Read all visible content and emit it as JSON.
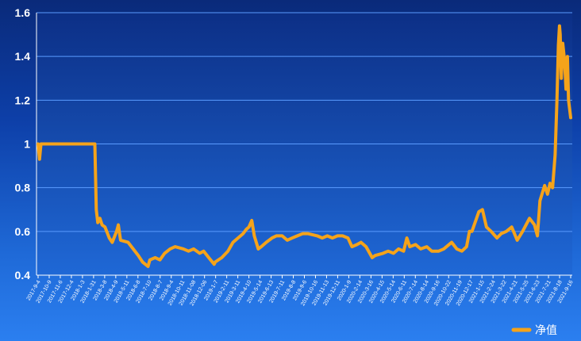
{
  "chart_data": {
    "type": "line",
    "title": "",
    "xlabel": "",
    "ylabel": "",
    "ylim": [
      0.4,
      1.6
    ],
    "y_ticks": [
      "0.4",
      "0.6",
      "0.8",
      "1",
      "1.2",
      "1.4",
      "1.6"
    ],
    "grid": true,
    "legend_position": "bottom-right",
    "colors": {
      "line": "#f5a31a",
      "grid": "#5a9bff",
      "axis": "#ffffff"
    },
    "x_tick_labels": [
      "2017-9-4",
      "2017-10-9",
      "2017-11-6",
      "2017-12-4",
      "2018-1-3",
      "2018-1-31",
      "2018-3-8",
      "2018-4-9",
      "2018-5-11",
      "2018-6-8",
      "2018-7-10",
      "2018-8-7",
      "2018-9-4",
      "2018-10-11",
      "2018-11-08",
      "2018-12-06",
      "2019-1-7",
      "2019-2-11",
      "2019-3-11",
      "2019-4-10",
      "2019-5-14",
      "2019-6-13",
      "2019-7-11",
      "2019-8-8",
      "2019-9-6",
      "2019-10-16",
      "2019-11-13",
      "2019-12-11",
      "2020-1-9",
      "2020-2-14",
      "2020-3-16",
      "2020-4-15",
      "2020-5-14",
      "2020-6-11",
      "2020-7-14",
      "2020-8-14",
      "2020-9-16",
      "2020-10-22",
      "2020-11-19",
      "2020-12-17",
      "2021-1-15",
      "2021-2-24",
      "2021-3-22",
      "2021-4-21",
      "2021-5-25",
      "2021-6-23",
      "2021-7-21",
      "2021-8-18",
      "2021-9-16"
    ],
    "series": [
      {
        "name": "净值",
        "points": [
          [
            "2017-09-04",
            1.0
          ],
          [
            "2017-09-08",
            0.93
          ],
          [
            "2017-09-12",
            1.0
          ],
          [
            "2017-10-09",
            1.0
          ],
          [
            "2017-11-06",
            1.0
          ],
          [
            "2017-12-04",
            1.0
          ],
          [
            "2018-01-03",
            1.0
          ],
          [
            "2018-01-31",
            1.0
          ],
          [
            "2018-02-08",
            1.0
          ],
          [
            "2018-02-12",
            0.7
          ],
          [
            "2018-02-16",
            0.64
          ],
          [
            "2018-02-22",
            0.66
          ],
          [
            "2018-02-28",
            0.63
          ],
          [
            "2018-03-08",
            0.62
          ],
          [
            "2018-03-20",
            0.57
          ],
          [
            "2018-03-28",
            0.55
          ],
          [
            "2018-04-09",
            0.6
          ],
          [
            "2018-04-14",
            0.63
          ],
          [
            "2018-04-20",
            0.56
          ],
          [
            "2018-05-11",
            0.55
          ],
          [
            "2018-05-25",
            0.52
          ],
          [
            "2018-06-08",
            0.49
          ],
          [
            "2018-06-20",
            0.46
          ],
          [
            "2018-07-05",
            0.44
          ],
          [
            "2018-07-10",
            0.47
          ],
          [
            "2018-07-25",
            0.48
          ],
          [
            "2018-08-07",
            0.47
          ],
          [
            "2018-08-20",
            0.5
          ],
          [
            "2018-09-04",
            0.52
          ],
          [
            "2018-09-18",
            0.53
          ],
          [
            "2018-10-11",
            0.52
          ],
          [
            "2018-10-25",
            0.51
          ],
          [
            "2018-11-08",
            0.52
          ],
          [
            "2018-11-25",
            0.5
          ],
          [
            "2018-12-06",
            0.51
          ],
          [
            "2018-12-20",
            0.48
          ],
          [
            "2019-01-04",
            0.45
          ],
          [
            "2019-01-07",
            0.46
          ],
          [
            "2019-01-25",
            0.48
          ],
          [
            "2019-02-11",
            0.51
          ],
          [
            "2019-02-25",
            0.55
          ],
          [
            "2019-03-11",
            0.57
          ],
          [
            "2019-03-25",
            0.59
          ],
          [
            "2019-04-03",
            0.61
          ],
          [
            "2019-04-10",
            0.62
          ],
          [
            "2019-04-18",
            0.65
          ],
          [
            "2019-04-25",
            0.58
          ],
          [
            "2019-05-06",
            0.52
          ],
          [
            "2019-05-14",
            0.53
          ],
          [
            "2019-05-28",
            0.55
          ],
          [
            "2019-06-13",
            0.57
          ],
          [
            "2019-06-25",
            0.58
          ],
          [
            "2019-07-11",
            0.58
          ],
          [
            "2019-07-25",
            0.56
          ],
          [
            "2019-08-08",
            0.57
          ],
          [
            "2019-08-22",
            0.58
          ],
          [
            "2019-09-06",
            0.59
          ],
          [
            "2019-09-20",
            0.59
          ],
          [
            "2019-10-16",
            0.58
          ],
          [
            "2019-10-30",
            0.57
          ],
          [
            "2019-11-13",
            0.58
          ],
          [
            "2019-11-27",
            0.57
          ],
          [
            "2019-12-11",
            0.58
          ],
          [
            "2019-12-25",
            0.58
          ],
          [
            "2020-01-09",
            0.57
          ],
          [
            "2020-01-20",
            0.53
          ],
          [
            "2020-02-03",
            0.54
          ],
          [
            "2020-02-14",
            0.55
          ],
          [
            "2020-02-28",
            0.53
          ],
          [
            "2020-03-16",
            0.48
          ],
          [
            "2020-03-24",
            0.49
          ],
          [
            "2020-04-15",
            0.5
          ],
          [
            "2020-04-29",
            0.51
          ],
          [
            "2020-05-14",
            0.5
          ],
          [
            "2020-05-28",
            0.52
          ],
          [
            "2020-06-11",
            0.51
          ],
          [
            "2020-06-20",
            0.57
          ],
          [
            "2020-06-28",
            0.53
          ],
          [
            "2020-07-14",
            0.54
          ],
          [
            "2020-07-28",
            0.52
          ],
          [
            "2020-08-14",
            0.53
          ],
          [
            "2020-08-28",
            0.51
          ],
          [
            "2020-09-16",
            0.51
          ],
          [
            "2020-09-30",
            0.52
          ],
          [
            "2020-10-22",
            0.55
          ],
          [
            "2020-11-05",
            0.52
          ],
          [
            "2020-11-19",
            0.51
          ],
          [
            "2020-12-02",
            0.53
          ],
          [
            "2020-12-10",
            0.6
          ],
          [
            "2020-12-17",
            0.6
          ],
          [
            "2021-01-05",
            0.69
          ],
          [
            "2021-01-15",
            0.7
          ],
          [
            "2021-01-26",
            0.62
          ],
          [
            "2021-02-08",
            0.6
          ],
          [
            "2021-02-24",
            0.57
          ],
          [
            "2021-03-08",
            0.59
          ],
          [
            "2021-03-22",
            0.6
          ],
          [
            "2021-04-06",
            0.62
          ],
          [
            "2021-04-21",
            0.56
          ],
          [
            "2021-05-06",
            0.6
          ],
          [
            "2021-05-25",
            0.66
          ],
          [
            "2021-06-08",
            0.63
          ],
          [
            "2021-06-16",
            0.58
          ],
          [
            "2021-06-23",
            0.74
          ],
          [
            "2021-07-06",
            0.81
          ],
          [
            "2021-07-14",
            0.77
          ],
          [
            "2021-07-21",
            0.82
          ],
          [
            "2021-07-28",
            0.8
          ],
          [
            "2021-08-04",
            0.95
          ],
          [
            "2021-08-09",
            1.2
          ],
          [
            "2021-08-13",
            1.45
          ],
          [
            "2021-08-16",
            1.54
          ],
          [
            "2021-08-18",
            1.5
          ],
          [
            "2021-08-21",
            1.3
          ],
          [
            "2021-08-25",
            1.46
          ],
          [
            "2021-08-30",
            1.38
          ],
          [
            "2021-09-03",
            1.25
          ],
          [
            "2021-09-07",
            1.4
          ],
          [
            "2021-09-10",
            1.2
          ],
          [
            "2021-09-16",
            1.12
          ]
        ]
      }
    ]
  }
}
